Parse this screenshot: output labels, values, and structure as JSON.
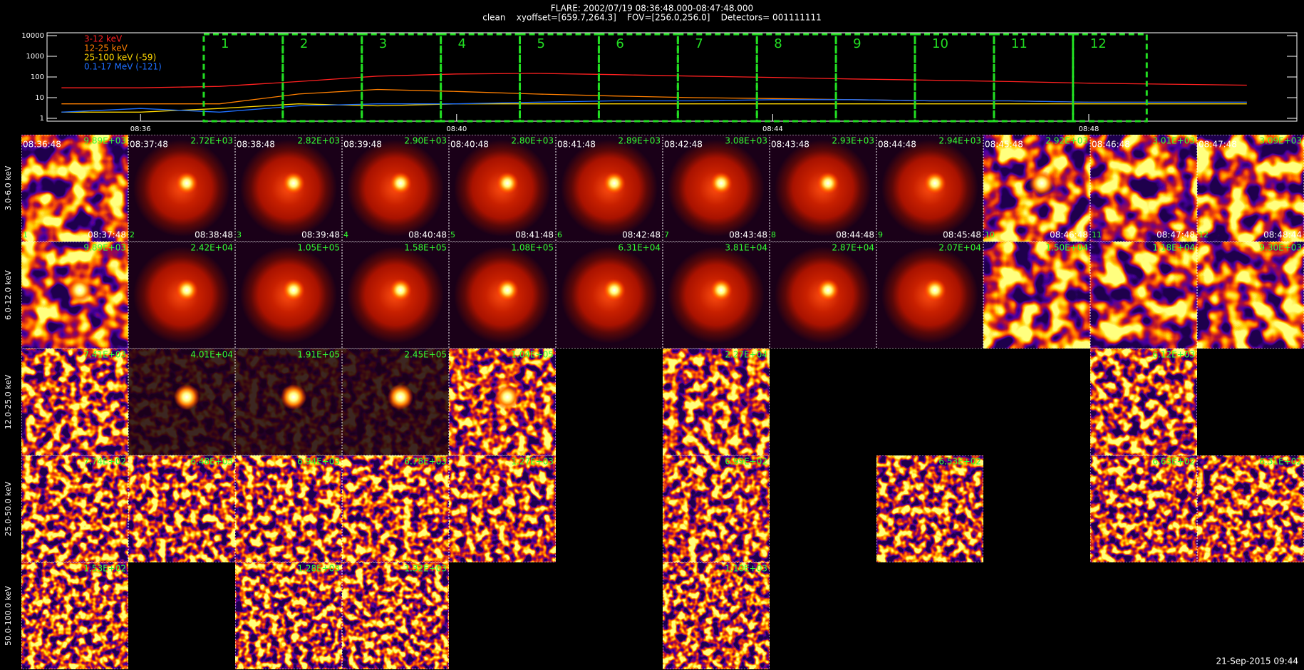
{
  "header": {
    "title": "FLARE: 2002/07/19 08:36:48.000-08:47:48.000",
    "subtitle": "clean    xyoffset=[659.7,264.3]    FOV=[256.0,256.0]    Detectors= 001111111"
  },
  "chart_data": {
    "type": "line",
    "log_y": true,
    "x": [
      "08:35",
      "08:36",
      "08:37",
      "08:38",
      "08:39",
      "08:40",
      "08:41",
      "08:42",
      "08:43",
      "08:44",
      "08:45",
      "08:46",
      "08:47",
      "08:48",
      "08:49",
      "08:50"
    ],
    "xlim": [
      "08:34:49",
      "08:50:38"
    ],
    "xticks": [
      "08:36",
      "08:40",
      "08:44",
      "08:48"
    ],
    "ylim": [
      1,
      10000
    ],
    "yticks": [
      1,
      10,
      100,
      1000,
      10000
    ],
    "series": [
      {
        "name": "3-12 keV",
        "color": "#ff2020",
        "values": [
          30,
          30,
          35,
          60,
          110,
          140,
          150,
          130,
          110,
          95,
          80,
          70,
          60,
          50,
          45,
          40
        ]
      },
      {
        "name": "12-25 keV",
        "color": "#ff7f00",
        "values": [
          5,
          5,
          5,
          15,
          25,
          20,
          15,
          12,
          10,
          9,
          8,
          7,
          7,
          6,
          6,
          6
        ]
      },
      {
        "name": "25-100 keV (-59)",
        "color": "#ffd700",
        "values": [
          2,
          2,
          3,
          5,
          4,
          5,
          5,
          5,
          5,
          5,
          5,
          5,
          5,
          5,
          5,
          5
        ]
      },
      {
        "name": "0.1-17 MeV (-121)",
        "color": "#1e6fff",
        "values": [
          2,
          3,
          2,
          4,
          5,
          5,
          6,
          7,
          7,
          8,
          8,
          7,
          7,
          6,
          6,
          6
        ]
      }
    ],
    "interval_color": "#22dd22",
    "intervals": [
      {
        "label": "1",
        "start": "08:36:48",
        "end": "08:37:48"
      },
      {
        "label": "2",
        "start": "08:37:48",
        "end": "08:38:48"
      },
      {
        "label": "3",
        "start": "08:38:48",
        "end": "08:39:48"
      },
      {
        "label": "4",
        "start": "08:39:48",
        "end": "08:40:48"
      },
      {
        "label": "5",
        "start": "08:40:48",
        "end": "08:41:48"
      },
      {
        "label": "6",
        "start": "08:41:48",
        "end": "08:42:48"
      },
      {
        "label": "7",
        "start": "08:42:48",
        "end": "08:43:48"
      },
      {
        "label": "8",
        "start": "08:43:48",
        "end": "08:44:48"
      },
      {
        "label": "9",
        "start": "08:44:48",
        "end": "08:45:48"
      },
      {
        "label": "10",
        "start": "08:45:48",
        "end": "08:46:48"
      },
      {
        "label": "11",
        "start": "08:46:48",
        "end": "08:47:48"
      },
      {
        "label": "12",
        "start": "08:47:48",
        "end": "08:48:44"
      }
    ]
  },
  "image_grid": {
    "rows": [
      {
        "label": "3.0-6.0 keV",
        "cells": [
          {
            "start": "08:36:48",
            "max": "9.89E+03",
            "index": "1",
            "end": "08:37:48"
          },
          {
            "start": "08:37:48",
            "max": "2.72E+03",
            "index": "2",
            "end": "08:38:48"
          },
          {
            "start": "08:38:48",
            "max": "2.82E+03",
            "index": "3",
            "end": "08:39:48"
          },
          {
            "start": "08:39:48",
            "max": "2.90E+03",
            "index": "4",
            "end": "08:40:48"
          },
          {
            "start": "08:40:48",
            "max": "2.80E+03",
            "index": "5",
            "end": "08:41:48"
          },
          {
            "start": "08:41:48",
            "max": "2.89E+03",
            "index": "6",
            "end": "08:42:48"
          },
          {
            "start": "08:42:48",
            "max": "3.08E+03",
            "index": "7",
            "end": "08:43:48"
          },
          {
            "start": "08:43:48",
            "max": "2.93E+03",
            "index": "8",
            "end": "08:44:48"
          },
          {
            "start": "08:44:48",
            "max": "2.94E+03",
            "index": "9",
            "end": "08:45:48"
          },
          {
            "start": "08:45:48",
            "max": "2.92E+03",
            "index": "10",
            "end": "08:46:48"
          },
          {
            "start": "08:46:48",
            "max": "3.01E+03",
            "index": "11",
            "end": "08:47:48"
          },
          {
            "start": "08:47:48",
            "max": "3.09E+03",
            "index": "12",
            "end": "08:48:44"
          }
        ]
      },
      {
        "label": "6.0-12.0 keV",
        "cells": [
          {
            "max": "9.89E+03"
          },
          {
            "max": "2.42E+04"
          },
          {
            "max": "1.05E+05"
          },
          {
            "max": "1.58E+05"
          },
          {
            "max": "1.08E+05"
          },
          {
            "max": "6.31E+04"
          },
          {
            "max": "3.81E+04"
          },
          {
            "max": "2.87E+04"
          },
          {
            "max": "2.07E+04"
          },
          {
            "max": "1.50E+04"
          },
          {
            "max": "1.18E+04"
          },
          {
            "max": "9.30E+03"
          }
        ]
      },
      {
        "label": "12.0-25.0 keV",
        "cells": [
          {
            "max": "7.41E+03"
          },
          {
            "max": "4.01E+04"
          },
          {
            "max": "1.91E+05"
          },
          {
            "max": "2.45E+05"
          },
          {
            "max": "1.04E+05"
          },
          null,
          {
            "max": "2.27E+04"
          },
          null,
          null,
          null,
          {
            "max": "6.12E+03"
          },
          null
        ]
      },
      {
        "label": "25.0-50.0 keV",
        "cells": [
          {
            "max": "7.74E+02"
          },
          {
            "max": "6.48E+03"
          },
          {
            "max": "6.94E+03"
          },
          {
            "max": "6.78E+03"
          },
          {
            "max": "1.27E+03"
          },
          null,
          {
            "max": "6.99E+02"
          },
          null,
          {
            "max": "6.53E+02"
          },
          null,
          {
            "max": "6.63E+02"
          },
          {
            "max": "6.31E+02"
          }
        ]
      },
      {
        "label": "50.0-100.0 keV",
        "cells": [
          {
            "max": "1.53E+02"
          },
          null,
          {
            "max": "1.28E+03"
          },
          {
            "max": "1.32E+03"
          },
          null,
          null,
          {
            "max": "1.10E+03"
          },
          null,
          null,
          null,
          null,
          null
        ]
      }
    ]
  },
  "footer": "21-Sep-2015 09:44"
}
